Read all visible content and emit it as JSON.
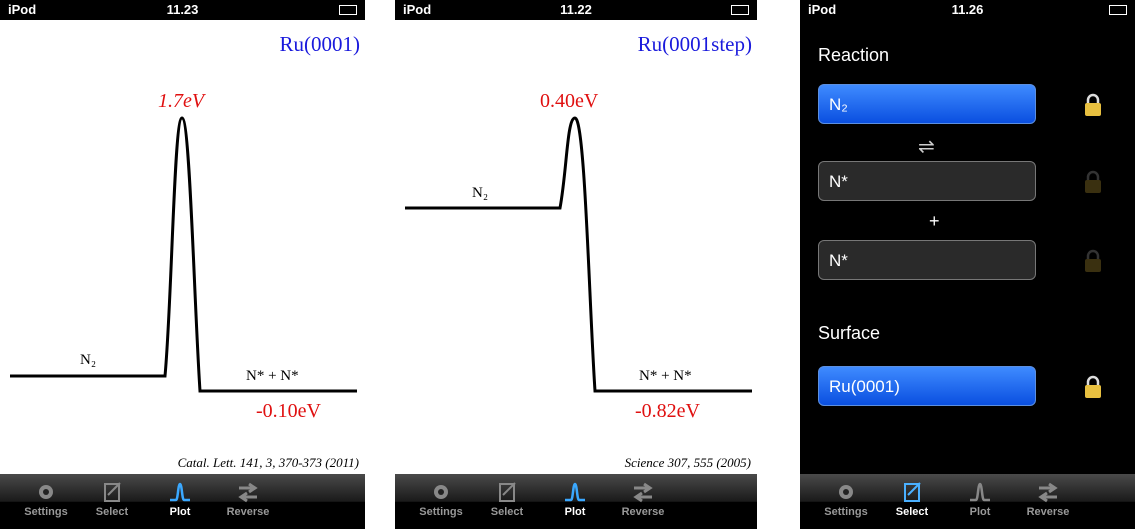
{
  "screens": [
    {
      "status": {
        "carrier": "iPod",
        "time": "11.23"
      },
      "surface": "Ru(0001)",
      "barrier": "1.7eV",
      "initial": "N₂",
      "final": "N* + N*",
      "final_energy": "-0.10eV",
      "citation": "Catal. Lett. 141, 3, 370-373 (2011)",
      "tabs": [
        "Settings",
        "Select",
        "Plot",
        "Reverse"
      ]
    },
    {
      "status": {
        "carrier": "iPod",
        "time": "11.22"
      },
      "surface": "Ru(0001step)",
      "barrier": "0.40eV",
      "initial": "N₂",
      "final": "N* + N*",
      "final_energy": "-0.82eV",
      "citation": "Science 307, 555 (2005)",
      "tabs": [
        "Settings",
        "Select",
        "Plot",
        "Reverse"
      ]
    },
    {
      "status": {
        "carrier": "iPod",
        "time": "11.26"
      },
      "reaction_label": "Reaction",
      "reactant": "N₂",
      "arrow": "⇌",
      "product1": "N*",
      "plus": "+",
      "product2": "N*",
      "surface_label": "Surface",
      "surface": "Ru(0001)",
      "tabs": [
        "Settings",
        "Select",
        "Plot",
        "Reverse"
      ]
    }
  ]
}
